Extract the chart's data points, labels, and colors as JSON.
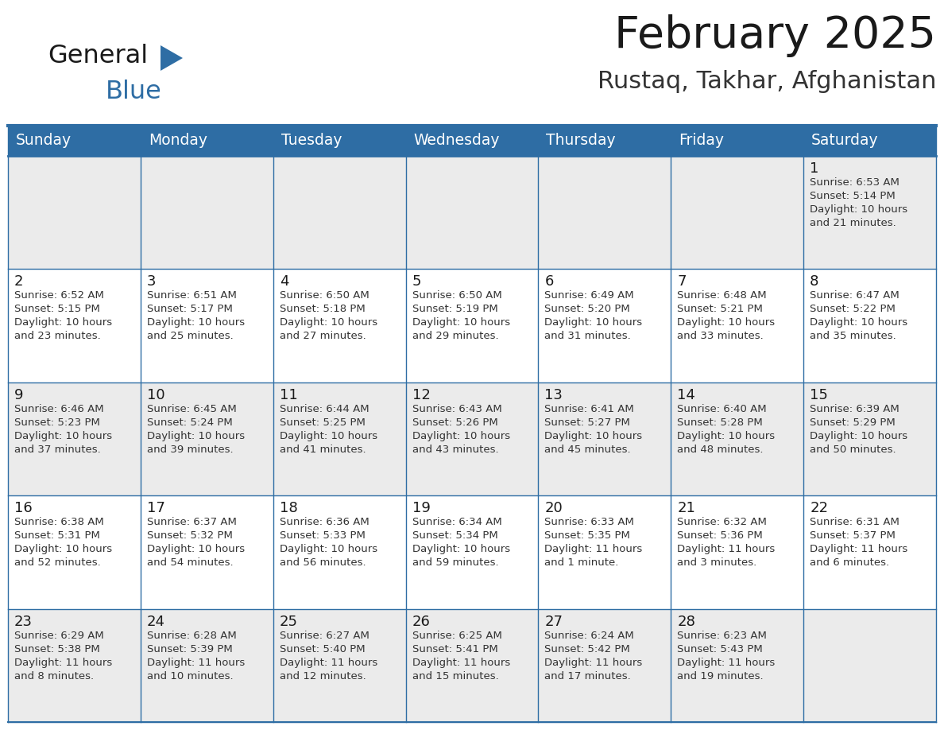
{
  "title": "February 2025",
  "subtitle": "Rustaq, Takhar, Afghanistan",
  "header_bg": "#2E6DA4",
  "header_text_color": "#FFFFFF",
  "cell_bg_light": "#EBEBEB",
  "cell_bg_white": "#FFFFFF",
  "border_color": "#2E6DA4",
  "text_color": "#333333",
  "day_number_color": "#1a1a1a",
  "day_headers": [
    "Sunday",
    "Monday",
    "Tuesday",
    "Wednesday",
    "Thursday",
    "Friday",
    "Saturday"
  ],
  "days": [
    {
      "day": 1,
      "col": 6,
      "row": 0,
      "sunrise": "6:53 AM",
      "sunset": "5:14 PM",
      "daylight_h": "10 hours",
      "daylight_m": "and 21 minutes."
    },
    {
      "day": 2,
      "col": 0,
      "row": 1,
      "sunrise": "6:52 AM",
      "sunset": "5:15 PM",
      "daylight_h": "10 hours",
      "daylight_m": "and 23 minutes."
    },
    {
      "day": 3,
      "col": 1,
      "row": 1,
      "sunrise": "6:51 AM",
      "sunset": "5:17 PM",
      "daylight_h": "10 hours",
      "daylight_m": "and 25 minutes."
    },
    {
      "day": 4,
      "col": 2,
      "row": 1,
      "sunrise": "6:50 AM",
      "sunset": "5:18 PM",
      "daylight_h": "10 hours",
      "daylight_m": "and 27 minutes."
    },
    {
      "day": 5,
      "col": 3,
      "row": 1,
      "sunrise": "6:50 AM",
      "sunset": "5:19 PM",
      "daylight_h": "10 hours",
      "daylight_m": "and 29 minutes."
    },
    {
      "day": 6,
      "col": 4,
      "row": 1,
      "sunrise": "6:49 AM",
      "sunset": "5:20 PM",
      "daylight_h": "10 hours",
      "daylight_m": "and 31 minutes."
    },
    {
      "day": 7,
      "col": 5,
      "row": 1,
      "sunrise": "6:48 AM",
      "sunset": "5:21 PM",
      "daylight_h": "10 hours",
      "daylight_m": "and 33 minutes."
    },
    {
      "day": 8,
      "col": 6,
      "row": 1,
      "sunrise": "6:47 AM",
      "sunset": "5:22 PM",
      "daylight_h": "10 hours",
      "daylight_m": "and 35 minutes."
    },
    {
      "day": 9,
      "col": 0,
      "row": 2,
      "sunrise": "6:46 AM",
      "sunset": "5:23 PM",
      "daylight_h": "10 hours",
      "daylight_m": "and 37 minutes."
    },
    {
      "day": 10,
      "col": 1,
      "row": 2,
      "sunrise": "6:45 AM",
      "sunset": "5:24 PM",
      "daylight_h": "10 hours",
      "daylight_m": "and 39 minutes."
    },
    {
      "day": 11,
      "col": 2,
      "row": 2,
      "sunrise": "6:44 AM",
      "sunset": "5:25 PM",
      "daylight_h": "10 hours",
      "daylight_m": "and 41 minutes."
    },
    {
      "day": 12,
      "col": 3,
      "row": 2,
      "sunrise": "6:43 AM",
      "sunset": "5:26 PM",
      "daylight_h": "10 hours",
      "daylight_m": "and 43 minutes."
    },
    {
      "day": 13,
      "col": 4,
      "row": 2,
      "sunrise": "6:41 AM",
      "sunset": "5:27 PM",
      "daylight_h": "10 hours",
      "daylight_m": "and 45 minutes."
    },
    {
      "day": 14,
      "col": 5,
      "row": 2,
      "sunrise": "6:40 AM",
      "sunset": "5:28 PM",
      "daylight_h": "10 hours",
      "daylight_m": "and 48 minutes."
    },
    {
      "day": 15,
      "col": 6,
      "row": 2,
      "sunrise": "6:39 AM",
      "sunset": "5:29 PM",
      "daylight_h": "10 hours",
      "daylight_m": "and 50 minutes."
    },
    {
      "day": 16,
      "col": 0,
      "row": 3,
      "sunrise": "6:38 AM",
      "sunset": "5:31 PM",
      "daylight_h": "10 hours",
      "daylight_m": "and 52 minutes."
    },
    {
      "day": 17,
      "col": 1,
      "row": 3,
      "sunrise": "6:37 AM",
      "sunset": "5:32 PM",
      "daylight_h": "10 hours",
      "daylight_m": "and 54 minutes."
    },
    {
      "day": 18,
      "col": 2,
      "row": 3,
      "sunrise": "6:36 AM",
      "sunset": "5:33 PM",
      "daylight_h": "10 hours",
      "daylight_m": "and 56 minutes."
    },
    {
      "day": 19,
      "col": 3,
      "row": 3,
      "sunrise": "6:34 AM",
      "sunset": "5:34 PM",
      "daylight_h": "10 hours",
      "daylight_m": "and 59 minutes."
    },
    {
      "day": 20,
      "col": 4,
      "row": 3,
      "sunrise": "6:33 AM",
      "sunset": "5:35 PM",
      "daylight_h": "11 hours",
      "daylight_m": "and 1 minute."
    },
    {
      "day": 21,
      "col": 5,
      "row": 3,
      "sunrise": "6:32 AM",
      "sunset": "5:36 PM",
      "daylight_h": "11 hours",
      "daylight_m": "and 3 minutes."
    },
    {
      "day": 22,
      "col": 6,
      "row": 3,
      "sunrise": "6:31 AM",
      "sunset": "5:37 PM",
      "daylight_h": "11 hours",
      "daylight_m": "and 6 minutes."
    },
    {
      "day": 23,
      "col": 0,
      "row": 4,
      "sunrise": "6:29 AM",
      "sunset": "5:38 PM",
      "daylight_h": "11 hours",
      "daylight_m": "and 8 minutes."
    },
    {
      "day": 24,
      "col": 1,
      "row": 4,
      "sunrise": "6:28 AM",
      "sunset": "5:39 PM",
      "daylight_h": "11 hours",
      "daylight_m": "and 10 minutes."
    },
    {
      "day": 25,
      "col": 2,
      "row": 4,
      "sunrise": "6:27 AM",
      "sunset": "5:40 PM",
      "daylight_h": "11 hours",
      "daylight_m": "and 12 minutes."
    },
    {
      "day": 26,
      "col": 3,
      "row": 4,
      "sunrise": "6:25 AM",
      "sunset": "5:41 PM",
      "daylight_h": "11 hours",
      "daylight_m": "and 15 minutes."
    },
    {
      "day": 27,
      "col": 4,
      "row": 4,
      "sunrise": "6:24 AM",
      "sunset": "5:42 PM",
      "daylight_h": "11 hours",
      "daylight_m": "and 17 minutes."
    },
    {
      "day": 28,
      "col": 5,
      "row": 4,
      "sunrise": "6:23 AM",
      "sunset": "5:43 PM",
      "daylight_h": "11 hours",
      "daylight_m": "and 19 minutes."
    }
  ],
  "num_rows": 5,
  "num_cols": 7,
  "fig_width": 11.88,
  "fig_height": 9.18,
  "dpi": 100
}
